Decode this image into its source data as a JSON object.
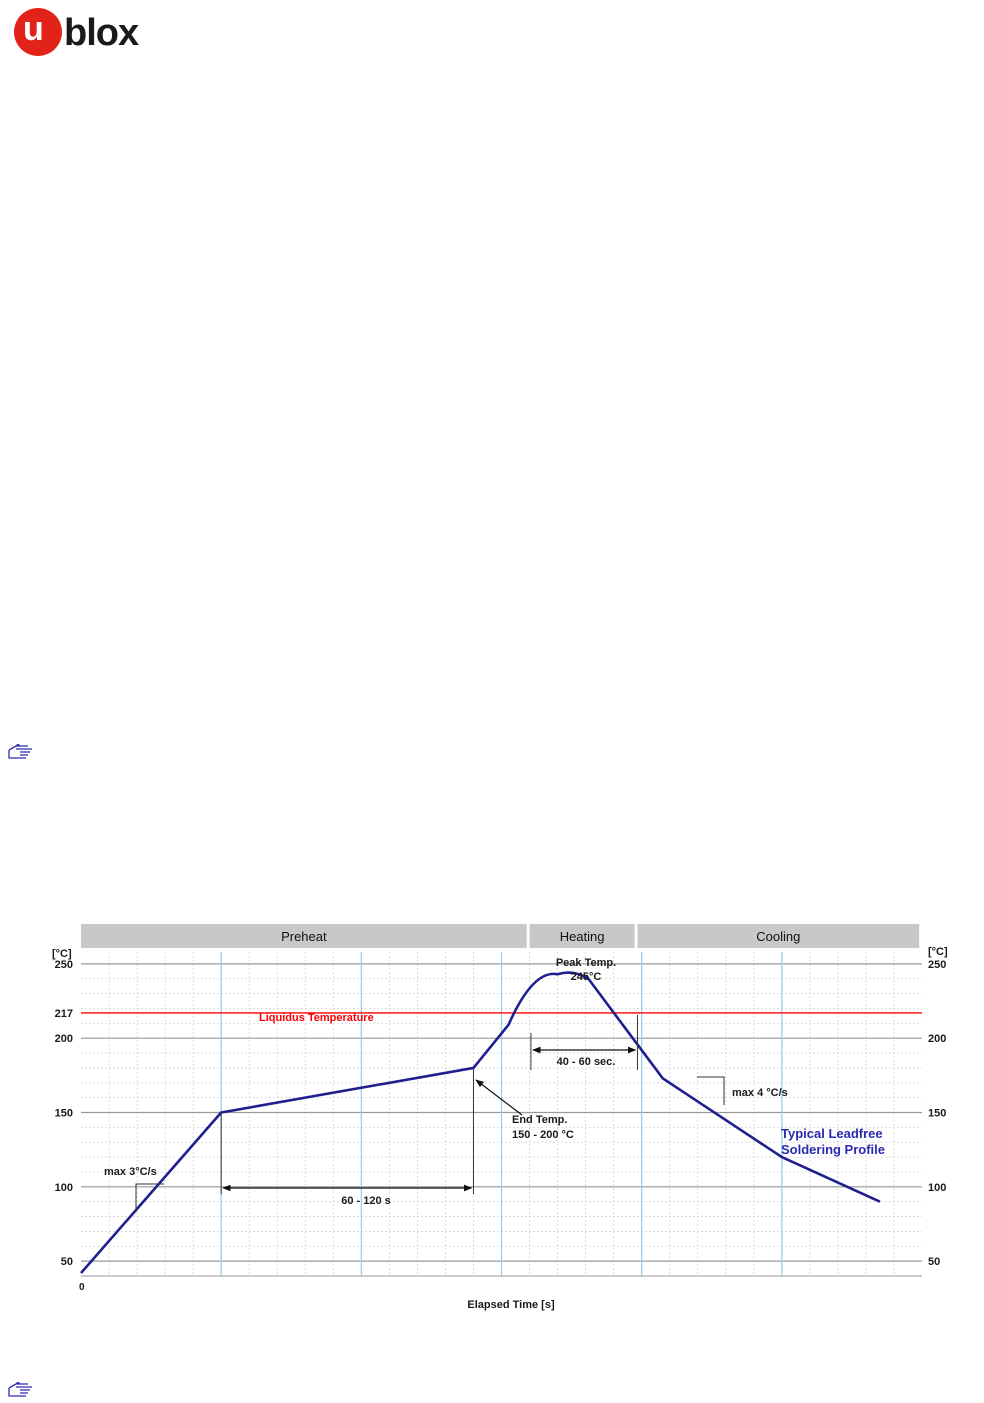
{
  "logo": {
    "u": "u",
    "text": "blox"
  },
  "chart_data": {
    "type": "line",
    "xlabel": "Elapsed Time [s]",
    "x_origin_label": "0",
    "ylabel_left": "[°C]",
    "ylabel_right": "[°C]",
    "ylim": [
      40,
      258
    ],
    "y_ticks_left": [
      250,
      217,
      200,
      150,
      100,
      50
    ],
    "y_ticks_right": [
      250,
      200,
      150,
      100,
      50
    ],
    "grid": true,
    "phases": [
      {
        "label": "Preheat",
        "x_start": 0,
        "x_end": 318
      },
      {
        "label": "Heating",
        "x_start": 320,
        "x_end": 395
      },
      {
        "label": "Cooling",
        "x_start": 397,
        "x_end": 598
      }
    ],
    "series": [
      {
        "color": "#1f1f8f",
        "points": [
          [
            0,
            42
          ],
          [
            100,
            150
          ],
          [
            280,
            180
          ],
          [
            305,
            209
          ],
          [
            340,
            243
          ],
          [
            362,
            240
          ],
          [
            415,
            173
          ],
          [
            500,
            120
          ],
          [
            570,
            90
          ]
        ]
      }
    ],
    "reference_line": {
      "label": "Liquidus Temperature",
      "y": 217,
      "color": "#ff0000"
    },
    "annotations": {
      "peak_title": "Peak Temp.",
      "peak_value": "245°C",
      "end_temp_title": "End Temp.",
      "end_temp_range": "150 - 200 °C",
      "preheat_duration": "60 - 120 s",
      "liquidus_duration": "40 - 60 sec.",
      "ramp_up": "max 3°C/s",
      "ramp_down": "max 4 °C/s",
      "profile_line1": "Typical Leadfree",
      "profile_line2": "Soldering Profile"
    }
  }
}
